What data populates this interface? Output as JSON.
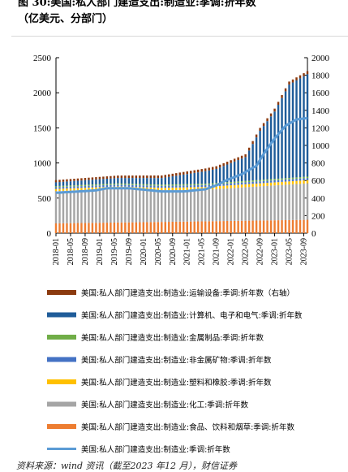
{
  "title": {
    "line1": "图 30:美国:私人部门建造支出:制造业:季调:折年数",
    "line2": "（亿美元、分部门）"
  },
  "source_text": "资料来源：wind 资讯（截至2023 年12 月），财信证券",
  "chart_data": {
    "type": "bar",
    "x_tick_labels": [
      "2018-01",
      "2018-05",
      "2018-09",
      "2019-01",
      "2019-05",
      "2019-09",
      "2020-01",
      "2020-05",
      "2020-09",
      "2021-01",
      "2021-05",
      "2021-09",
      "2022-01",
      "2022-05",
      "2022-09",
      "2023-01",
      "2023-05",
      "2023-09"
    ],
    "x_start": "2018-01",
    "x_end": "2023-10",
    "y_left_ticks": [
      0,
      500,
      1000,
      1500,
      2000,
      2500
    ],
    "y_left_range": [
      0,
      2500
    ],
    "y_right_ticks": [
      0,
      200,
      400,
      600,
      800,
      1000,
      1200,
      1400,
      1600,
      1800,
      2000
    ],
    "y_right_range": [
      0,
      2000
    ],
    "grid": false,
    "legend_position": "bottom",
    "colors": {
      "transport": "#8B3A0F",
      "computer": "#1F5C99",
      "metal": "#70AD47",
      "nonmetal": "#4472C4",
      "plastic": "#FFC000",
      "chemical": "#A5A5A5",
      "food": "#ED7D31",
      "total": "#5B9BD5"
    },
    "legend": [
      {
        "key": "transport",
        "label": "美国:私人部门建造支出:制造业:运输设备:季调:折年数（右轴）",
        "style": "bar"
      },
      {
        "key": "computer",
        "label": "美国:私人部门建造支出:制造业:计算机、电子和电气:季调:折年数",
        "style": "bar"
      },
      {
        "key": "metal",
        "label": "美国:私人部门建造支出:制造业:金属制品:季调:折年数",
        "style": "bar"
      },
      {
        "key": "nonmetal",
        "label": "美国:私人部门建造支出:制造业:非金属矿物:季调:折年数",
        "style": "bar"
      },
      {
        "key": "plastic",
        "label": "美国:私人部门建造支出:制造业:塑料和橡胶:季调:折年数",
        "style": "bar"
      },
      {
        "key": "chemical",
        "label": "美国:私人部门建造支出:制造业:化工:季调:折年数",
        "style": "bar"
      },
      {
        "key": "food",
        "label": "美国:私人部门建造支出:制造业:食品、饮料和烟草:季调:折年数",
        "style": "bar"
      },
      {
        "key": "total",
        "label": "美国:私人部门建造支出:制造业:季调:折年数",
        "style": "line"
      }
    ],
    "total_anchors": [
      {
        "x": "2018-01",
        "y": 575
      },
      {
        "x": "2018-06",
        "y": 590
      },
      {
        "x": "2018-12",
        "y": 610
      },
      {
        "x": "2019-03",
        "y": 640
      },
      {
        "x": "2019-09",
        "y": 640
      },
      {
        "x": "2020-01",
        "y": 620
      },
      {
        "x": "2020-06",
        "y": 595
      },
      {
        "x": "2020-12",
        "y": 595
      },
      {
        "x": "2021-06",
        "y": 625
      },
      {
        "x": "2021-09",
        "y": 680
      },
      {
        "x": "2021-12",
        "y": 760
      },
      {
        "x": "2022-04",
        "y": 840
      },
      {
        "x": "2022-08",
        "y": 960
      },
      {
        "x": "2022-10",
        "y": 1130
      },
      {
        "x": "2023-01",
        "y": 1350
      },
      {
        "x": "2023-04",
        "y": 1530
      },
      {
        "x": "2023-07",
        "y": 1620
      },
      {
        "x": "2023-10",
        "y": 1640
      }
    ],
    "bar_component_anchors": {
      "food": [
        {
          "x": "2018-01",
          "y": 140
        },
        {
          "x": "2020-06",
          "y": 160
        },
        {
          "x": "2023-10",
          "y": 190
        }
      ],
      "chemical": [
        {
          "x": "2018-01",
          "y": 460
        },
        {
          "x": "2019-06",
          "y": 480
        },
        {
          "x": "2020-06",
          "y": 450
        },
        {
          "x": "2021-06",
          "y": 450
        },
        {
          "x": "2023-10",
          "y": 520
        }
      ],
      "plastic": [
        {
          "x": "2018-01",
          "y": 30
        },
        {
          "x": "2023-10",
          "y": 45
        }
      ],
      "nonmetal": [
        {
          "x": "2018-01",
          "y": 25
        },
        {
          "x": "2023-10",
          "y": 30
        }
      ],
      "metal": [
        {
          "x": "2018-01",
          "y": 15
        },
        {
          "x": "2023-10",
          "y": 20
        }
      ],
      "computer": [
        {
          "x": "2018-01",
          "y": 55
        },
        {
          "x": "2020-06",
          "y": 95
        },
        {
          "x": "2021-09",
          "y": 200
        },
        {
          "x": "2022-05",
          "y": 340
        },
        {
          "x": "2022-09",
          "y": 700
        },
        {
          "x": "2023-01",
          "y": 960
        },
        {
          "x": "2023-05",
          "y": 1330
        },
        {
          "x": "2023-10",
          "y": 1460
        }
      ],
      "transport": [
        {
          "x": "2018-01",
          "y": 25
        },
        {
          "x": "2023-10",
          "y": 35
        }
      ]
    }
  }
}
